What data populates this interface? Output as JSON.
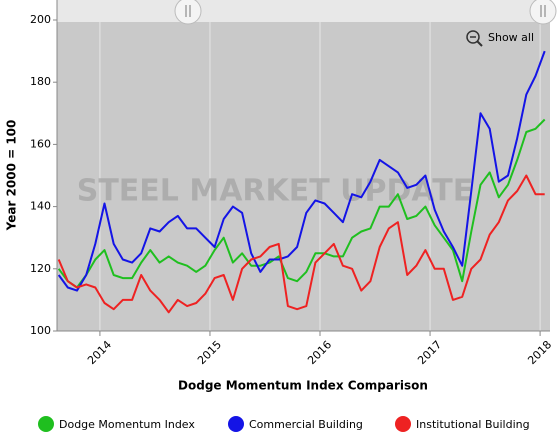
{
  "chart_data": {
    "type": "line",
    "title": "Dodge Momentum Index Comparison",
    "y_label": "Year 2000 = 100",
    "watermark": "STEEL MARKET UPDATE",
    "button": "Show all",
    "x": [
      2013.625,
      2013.708,
      2013.792,
      2013.875,
      2013.958,
      2014.042,
      2014.125,
      2014.208,
      2014.292,
      2014.375,
      2014.458,
      2014.542,
      2014.625,
      2014.708,
      2014.792,
      2014.875,
      2014.958,
      2015.042,
      2015.125,
      2015.208,
      2015.292,
      2015.375,
      2015.458,
      2015.542,
      2015.625,
      2015.708,
      2015.792,
      2015.875,
      2015.958,
      2016.042,
      2016.125,
      2016.208,
      2016.292,
      2016.375,
      2016.458,
      2016.542,
      2016.625,
      2016.708,
      2016.792,
      2016.875,
      2016.958,
      2017.042,
      2017.125,
      2017.208,
      2017.292,
      2017.375,
      2017.458,
      2017.542,
      2017.625,
      2017.708,
      2017.792,
      2017.875,
      2017.958,
      2018.042
    ],
    "series": [
      {
        "name": "Dodge Momentum Index",
        "color": "#1fbf1f",
        "values": [
          120,
          116,
          114,
          118,
          123,
          126,
          118,
          117,
          117,
          122,
          126,
          122,
          124,
          122,
          121,
          119,
          121,
          126,
          130,
          122,
          125,
          121,
          121,
          122,
          124,
          117,
          116,
          119,
          125,
          125,
          124,
          124,
          130,
          132,
          133,
          140,
          140,
          144,
          136,
          137,
          140,
          134,
          130,
          126,
          116,
          132,
          147,
          151,
          143,
          147,
          155,
          164,
          165,
          168
        ]
      },
      {
        "name": "Commercial Building",
        "color": "#1414e6",
        "values": [
          118,
          114,
          113,
          118,
          128,
          141,
          128,
          123,
          122,
          125,
          133,
          132,
          135,
          137,
          133,
          133,
          130,
          127,
          136,
          140,
          138,
          125,
          119,
          123,
          123,
          124,
          127,
          138,
          142,
          141,
          138,
          135,
          144,
          143,
          148,
          155,
          153,
          151,
          146,
          147,
          150,
          139,
          132,
          127,
          121,
          145,
          170,
          165,
          148,
          150,
          162,
          176,
          182,
          190
        ]
      },
      {
        "name": "Institutional Building",
        "color": "#ee2222",
        "values": [
          123,
          116,
          114,
          115,
          114,
          109,
          107,
          110,
          110,
          118,
          113,
          110,
          106,
          110,
          108,
          109,
          112,
          117,
          118,
          110,
          120,
          123,
          124,
          127,
          128,
          108,
          107,
          108,
          122,
          125,
          128,
          121,
          120,
          113,
          116,
          127,
          133,
          135,
          118,
          121,
          126,
          120,
          120,
          110,
          111,
          120,
          123,
          131,
          135,
          142,
          145,
          150,
          144,
          144
        ]
      }
    ],
    "xlim": [
      2013.61,
      2018.09
    ],
    "xticks": [
      2014,
      2015,
      2016,
      2017,
      2018
    ],
    "ylim": [
      100,
      200
    ],
    "yticks": [
      100,
      120,
      140,
      160,
      180,
      200
    ],
    "grid": true
  }
}
